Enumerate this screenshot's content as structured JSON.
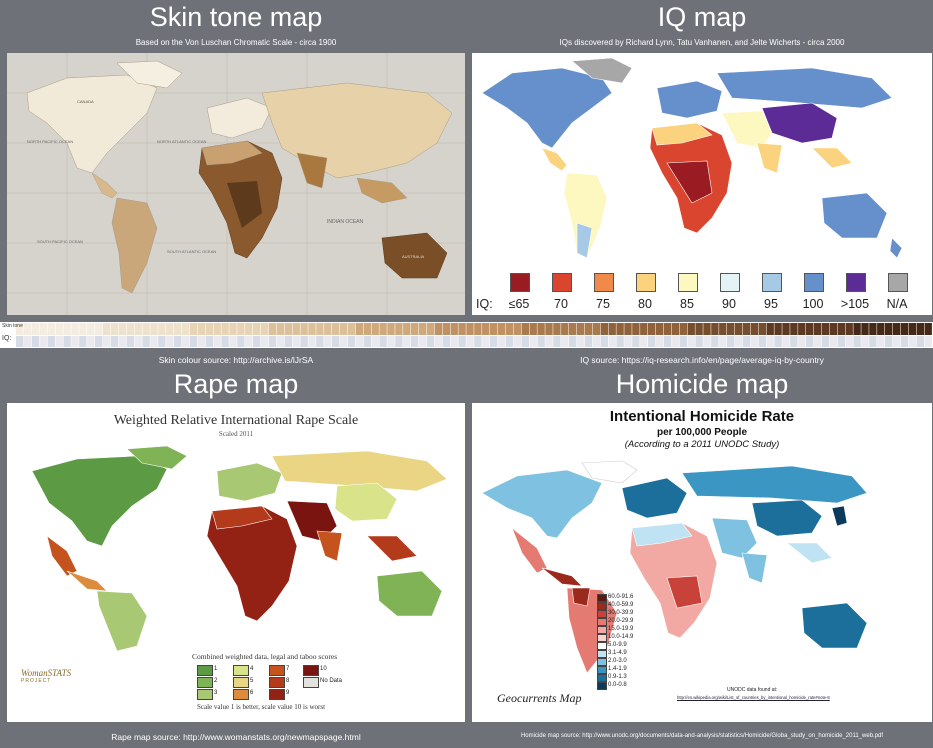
{
  "skin": {
    "title": "Skin tone map",
    "subtitle": "Based on the Von Luschan Chromatic Scale - circa 1900",
    "source": "Skin colour source: http://archive.is/lJrSA",
    "ocean_labels": [
      "NORTH PACIFIC OCEAN",
      "NORTH ATLANTIC OCEAN",
      "INDIAN OCEAN",
      "SOUTH PACIFIC OCEAN",
      "SOUTH ATLANTIC OCEAN",
      "CANADA",
      "AUSTRALIA"
    ]
  },
  "iq": {
    "title": "IQ map",
    "subtitle": "IQs discovered by Richard Lynn, Tatu Vanhanen, and Jelte Wicherts - circa 2000",
    "source": "IQ source:  https://iq-research.info/en/page/average-iq-by-country",
    "legend_prefix": "IQ:",
    "legend": [
      {
        "label": "≤65",
        "color": "#9b1b22"
      },
      {
        "label": "70",
        "color": "#d9452e"
      },
      {
        "label": "75",
        "color": "#f08a4b"
      },
      {
        "label": "80",
        "color": "#fbd27d"
      },
      {
        "label": "85",
        "color": "#fdf7c0"
      },
      {
        "label": "90",
        "color": "#e3f3f6"
      },
      {
        "label": "95",
        "color": "#a6c9e6"
      },
      {
        "label": "100",
        "color": "#6690cb"
      },
      {
        "label": ">105",
        "color": "#5d2b95"
      },
      {
        "label": "N/A",
        "color": "#a7a7a7"
      }
    ]
  },
  "strip": {
    "label_top": "Skin tone",
    "label_bottom": "IQ:"
  },
  "rape": {
    "title": "Rape map",
    "source": "Rape map source: http://www.womanstats.org/newmapspage.html",
    "map_title": "Weighted Relative International Rape Scale",
    "map_subtitle": "Scaled 2011",
    "legend_title": "Combined weighted data, legal and taboo scores",
    "legend_note": "Scale value 1 is better, scale value 10 is worst",
    "legend": [
      {
        "label": "1",
        "color": "#5c9a44"
      },
      {
        "label": "4",
        "color": "#d8e38a"
      },
      {
        "label": "7",
        "color": "#c5531e"
      },
      {
        "label": "10",
        "color": "#7a1410"
      },
      {
        "label": "2",
        "color": "#7fb356"
      },
      {
        "label": "5",
        "color": "#e9d583"
      },
      {
        "label": "8",
        "color": "#b43a1c"
      },
      {
        "label": "No Data",
        "color": "#e4e2df"
      },
      {
        "label": "3",
        "color": "#a8c874"
      },
      {
        "label": "6",
        "color": "#dd8c3c"
      },
      {
        "label": "9",
        "color": "#932114"
      }
    ],
    "logo_text": "WomanSTATS",
    "logo_sub": "PROJECT"
  },
  "homicide": {
    "title": "Homicide map",
    "source": "Homicide map source: http://www.unodc.org/documents/data-and-analysis/statistics/Homicide/Globa_study_on_homicide_2011_web.pdf",
    "map_title": "Intentional Homicide Rate",
    "map_subtitle": "per 100,000 People",
    "map_subtitle2": "(According to a 2011 UNODC Study)",
    "credit": "Geocurrents Map",
    "data_found": "UNODC data found at:",
    "data_url": "http://en.wikipedia.org/wiki/List_of_countries_by_intentional_homicide_rate#note-8",
    "legend": [
      {
        "label": "60.0-91.6",
        "color": "#5a1a12"
      },
      {
        "label": "40.0-59.9",
        "color": "#9b2a1d"
      },
      {
        "label": "30.0-39.9",
        "color": "#c8423a"
      },
      {
        "label": "20.0-29.9",
        "color": "#e57a72"
      },
      {
        "label": "15.0-19.9",
        "color": "#f2a9a3"
      },
      {
        "label": "10.0-14.9",
        "color": "#f7d3d0"
      },
      {
        "label": "5.0-9.9",
        "color": "#ffffff"
      },
      {
        "label": "3.1-4.9",
        "color": "#bfe3f3"
      },
      {
        "label": "2.0-3.0",
        "color": "#7fc1e0"
      },
      {
        "label": "1.4-1.9",
        "color": "#3c96c4"
      },
      {
        "label": "0.9-1.3",
        "color": "#1c6f9b"
      },
      {
        "label": "0.0-0.8",
        "color": "#0b3a5c"
      }
    ]
  }
}
